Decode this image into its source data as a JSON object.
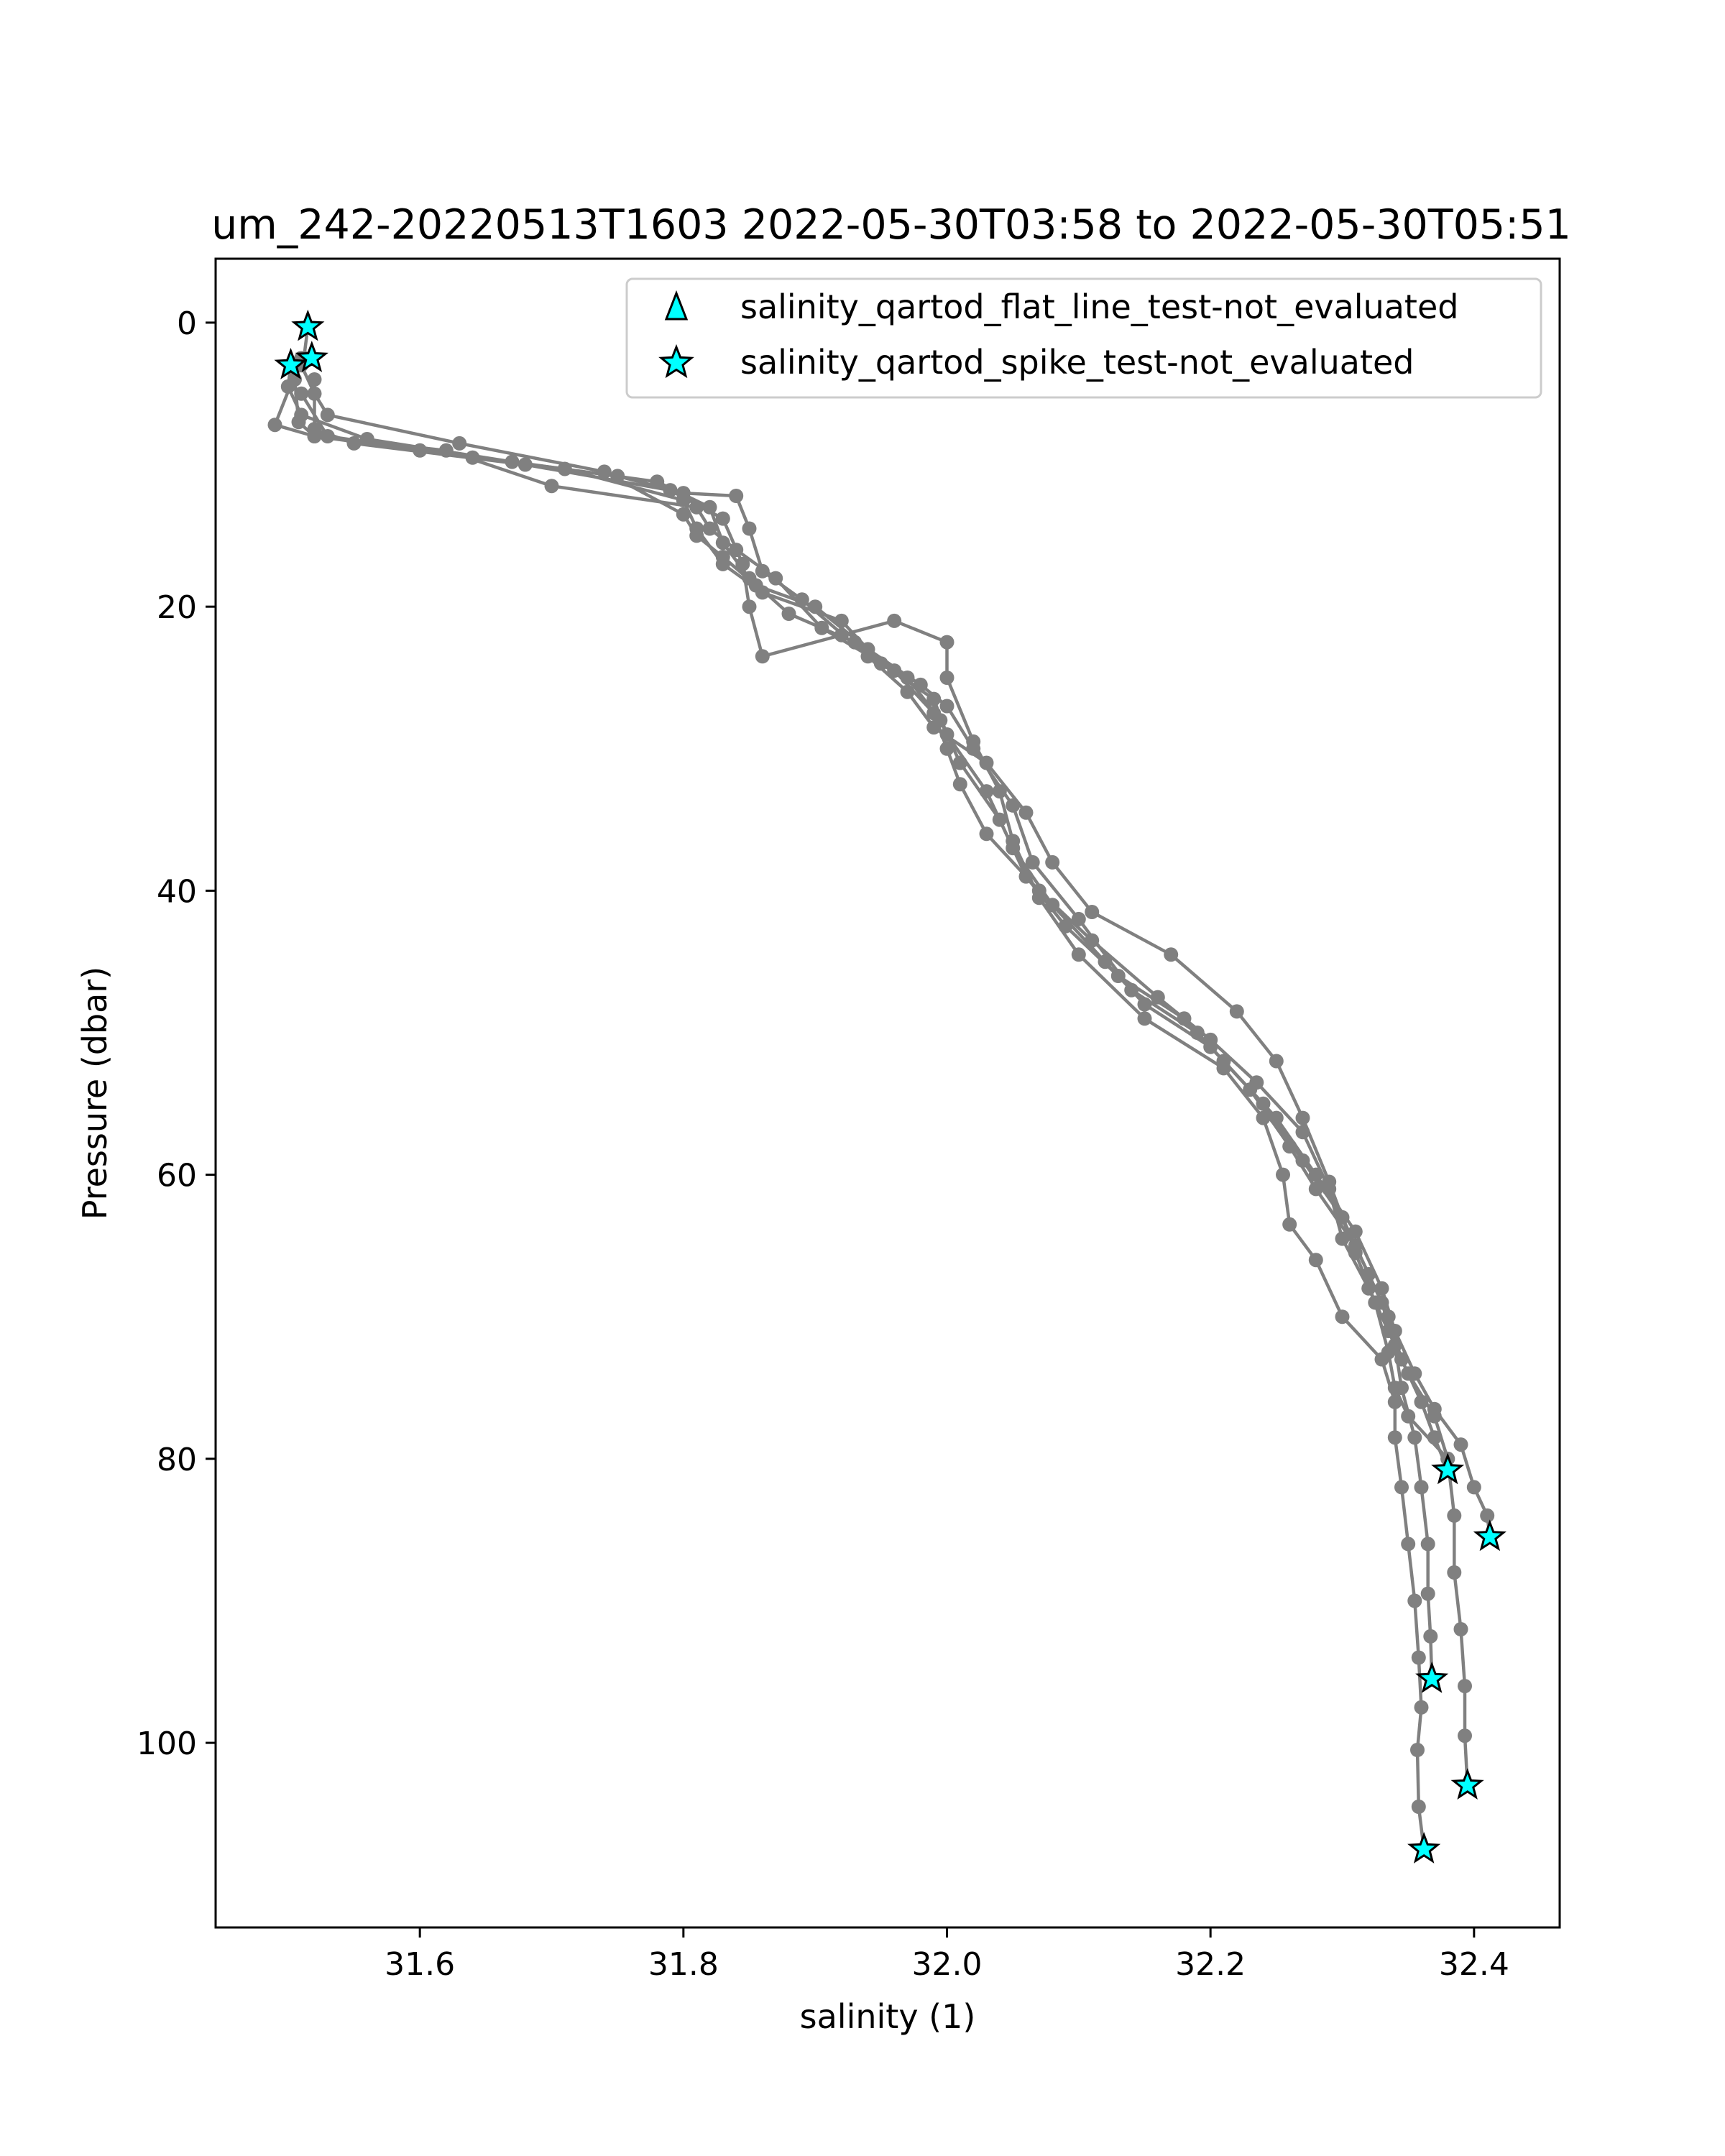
{
  "chart_data": {
    "type": "scatter",
    "title": "um_242-20220513T1603 2022-05-30T03:58 to 2022-05-30T05:51",
    "xlabel": "salinity (1)",
    "ylabel": "Pressure (dbar)",
    "xlim": [
      31.445,
      32.465
    ],
    "ylim": [
      113,
      -4.5
    ],
    "y_inverted": true,
    "xticks": [
      31.6,
      31.8,
      32.0,
      32.2,
      32.4
    ],
    "xtick_labels": [
      "31.6",
      "31.8",
      "32.0",
      "32.2",
      "32.4"
    ],
    "yticks": [
      0,
      20,
      40,
      60,
      80,
      100
    ],
    "ytick_labels": [
      "0",
      "20",
      "40",
      "60",
      "80",
      "100"
    ],
    "grid": false,
    "legend_position": "top-right",
    "profile_color": "#808080",
    "marker_color": "#00ffff",
    "series": [
      {
        "role": "profile",
        "points": [
          [
            31.515,
            0.3
          ],
          [
            31.512,
            2.5
          ],
          [
            31.505,
            4.0
          ],
          [
            31.508,
            7.0
          ],
          [
            31.52,
            8.0
          ],
          [
            31.6,
            9.0
          ],
          [
            31.71,
            10.3
          ],
          [
            31.8,
            12.5
          ],
          [
            31.81,
            14.5
          ],
          [
            31.83,
            17.0
          ],
          [
            31.86,
            19.0
          ],
          [
            31.92,
            21.0
          ],
          [
            31.95,
            24.0
          ],
          [
            31.99,
            26.5
          ],
          [
            32.0,
            29.0
          ],
          [
            32.03,
            33.0
          ],
          [
            32.05,
            37.0
          ],
          [
            32.08,
            41.0
          ],
          [
            32.12,
            45.0
          ],
          [
            32.15,
            48.0
          ],
          [
            32.2,
            51.0
          ],
          [
            32.24,
            55.0
          ],
          [
            32.27,
            59.0
          ],
          [
            32.3,
            63.0
          ],
          [
            32.32,
            67.0
          ],
          [
            32.335,
            70.0
          ],
          [
            32.345,
            73.0
          ],
          [
            32.36,
            76.0
          ],
          [
            32.37,
            78.5
          ],
          [
            32.38,
            80.8
          ]
        ]
      },
      {
        "role": "profile",
        "points": [
          [
            31.502,
            3.0
          ],
          [
            31.5,
            4.5
          ],
          [
            31.51,
            6.5
          ],
          [
            31.56,
            8.2
          ],
          [
            31.67,
            9.8
          ],
          [
            31.78,
            11.2
          ],
          [
            31.82,
            13.0
          ],
          [
            31.83,
            15.5
          ],
          [
            31.85,
            18.0
          ],
          [
            31.88,
            20.5
          ],
          [
            31.93,
            22.5
          ],
          [
            31.97,
            25.0
          ],
          [
            31.995,
            28.0
          ],
          [
            32.01,
            31.0
          ],
          [
            32.04,
            35.0
          ],
          [
            32.06,
            39.0
          ],
          [
            32.09,
            42.5
          ],
          [
            32.13,
            46.0
          ],
          [
            32.18,
            49.0
          ],
          [
            32.21,
            52.0
          ],
          [
            32.25,
            56.0
          ],
          [
            32.28,
            60.0
          ],
          [
            32.31,
            64.0
          ],
          [
            32.33,
            68.0
          ],
          [
            32.34,
            71.0
          ],
          [
            32.355,
            74.0
          ],
          [
            32.37,
            76.5
          ],
          [
            32.39,
            79.0
          ],
          [
            32.4,
            82.0
          ],
          [
            32.41,
            84.0
          ],
          [
            32.412,
            85.5
          ]
        ]
      },
      {
        "role": "profile",
        "points": [
          [
            31.51,
            3.0
          ],
          [
            31.52,
            5.0
          ],
          [
            31.53,
            6.5
          ],
          [
            31.63,
            8.5
          ],
          [
            31.74,
            10.5
          ],
          [
            31.8,
            13.5
          ],
          [
            31.81,
            15.0
          ],
          [
            31.83,
            16.5
          ],
          [
            31.855,
            18.5
          ],
          [
            31.9,
            20.0
          ],
          [
            31.94,
            23.0
          ],
          [
            31.98,
            25.5
          ],
          [
            32.0,
            27.0
          ],
          [
            32.02,
            30.0
          ],
          [
            32.05,
            34.0
          ],
          [
            32.065,
            38.0
          ],
          [
            32.1,
            42.0
          ],
          [
            32.14,
            47.0
          ],
          [
            32.19,
            50.0
          ],
          [
            32.23,
            54.0
          ],
          [
            32.26,
            58.0
          ],
          [
            32.28,
            61.0
          ],
          [
            32.31,
            65.0
          ],
          [
            32.33,
            69.0
          ],
          [
            32.34,
            72.0
          ],
          [
            32.345,
            75.0
          ],
          [
            32.355,
            78.5
          ],
          [
            32.36,
            82.0
          ],
          [
            32.365,
            86.0
          ],
          [
            32.365,
            89.5
          ],
          [
            32.367,
            92.5
          ],
          [
            32.368,
            95.5
          ]
        ]
      },
      {
        "role": "profile",
        "points": [
          [
            31.51,
            2.5
          ],
          [
            31.49,
            7.2
          ],
          [
            31.52,
            8.0
          ],
          [
            31.62,
            9.0
          ],
          [
            31.7,
            11.5
          ],
          [
            31.81,
            13.0
          ],
          [
            31.82,
            14.5
          ],
          [
            31.84,
            16.0
          ],
          [
            31.87,
            18.0
          ],
          [
            31.905,
            21.5
          ],
          [
            31.96,
            24.5
          ],
          [
            31.99,
            27.5
          ],
          [
            32.0,
            30.0
          ],
          [
            32.01,
            32.5
          ],
          [
            32.03,
            36.0
          ],
          [
            32.07,
            40.0
          ],
          [
            32.11,
            43.5
          ],
          [
            32.16,
            47.5
          ],
          [
            32.2,
            50.5
          ],
          [
            32.235,
            53.5
          ],
          [
            32.27,
            57.0
          ],
          [
            32.29,
            61.0
          ],
          [
            32.3,
            64.5
          ],
          [
            32.32,
            68.0
          ],
          [
            32.335,
            71.0
          ],
          [
            32.35,
            74.0
          ],
          [
            32.37,
            77.0
          ],
          [
            32.38,
            80.0
          ],
          [
            32.385,
            84.0
          ],
          [
            32.385,
            88.0
          ],
          [
            32.39,
            92.0
          ],
          [
            32.393,
            96.0
          ],
          [
            32.393,
            99.5
          ],
          [
            32.395,
            103.0
          ]
        ]
      },
      {
        "role": "profile",
        "points": [
          [
            31.52,
            4.0
          ],
          [
            31.52,
            7.5
          ],
          [
            31.55,
            8.5
          ],
          [
            31.68,
            10.0
          ],
          [
            31.79,
            11.8
          ],
          [
            31.83,
            13.8
          ],
          [
            31.845,
            17.0
          ],
          [
            31.85,
            20.0
          ],
          [
            31.86,
            23.5
          ],
          [
            31.92,
            22.0
          ],
          [
            31.96,
            21.0
          ],
          [
            32.0,
            22.5
          ],
          [
            32.0,
            25.0
          ],
          [
            32.02,
            29.5
          ],
          [
            32.04,
            33.0
          ],
          [
            32.05,
            36.5
          ],
          [
            32.07,
            40.5
          ],
          [
            32.1,
            44.5
          ],
          [
            32.15,
            49.0
          ],
          [
            32.21,
            52.5
          ],
          [
            32.24,
            56.0
          ],
          [
            32.255,
            60.0
          ],
          [
            32.26,
            63.5
          ],
          [
            32.28,
            66.0
          ],
          [
            32.3,
            70.0
          ],
          [
            32.33,
            73.0
          ],
          [
            32.34,
            76.0
          ],
          [
            32.34,
            78.5
          ],
          [
            32.345,
            82.0
          ],
          [
            32.35,
            86.0
          ],
          [
            32.355,
            90.0
          ],
          [
            32.358,
            94.0
          ],
          [
            32.36,
            97.5
          ],
          [
            32.357,
            100.5
          ],
          [
            32.358,
            104.5
          ],
          [
            32.362,
            107.5
          ]
        ]
      },
      {
        "role": "profile",
        "points": [
          [
            31.51,
            5.0
          ],
          [
            31.53,
            8.0
          ],
          [
            31.64,
            9.5
          ],
          [
            31.75,
            10.8
          ],
          [
            31.8,
            12.0
          ],
          [
            31.84,
            12.2
          ],
          [
            31.85,
            14.5
          ],
          [
            31.86,
            17.5
          ],
          [
            31.89,
            19.5
          ],
          [
            31.94,
            23.5
          ],
          [
            31.97,
            26.0
          ],
          [
            31.99,
            28.5
          ],
          [
            32.03,
            31.0
          ],
          [
            32.06,
            34.5
          ],
          [
            32.08,
            38.0
          ],
          [
            32.11,
            41.5
          ],
          [
            32.17,
            44.5
          ],
          [
            32.22,
            48.5
          ],
          [
            32.25,
            52.0
          ],
          [
            32.27,
            56.0
          ],
          [
            32.29,
            60.5
          ],
          [
            32.31,
            65.5
          ],
          [
            32.325,
            69.0
          ],
          [
            32.335,
            72.5
          ],
          [
            32.34,
            75.0
          ],
          [
            32.35,
            77.0
          ],
          [
            32.38,
            80.0
          ]
        ]
      }
    ],
    "flagged_points": [
      {
        "label": "salinity_qartod_spike_test-not_evaluated",
        "x": 31.515,
        "y": 0.3
      },
      {
        "label": "salinity_qartod_spike_test-not_evaluated",
        "x": 31.502,
        "y": 3.0
      },
      {
        "label": "salinity_qartod_spike_test-not_evaluated",
        "x": 31.518,
        "y": 2.5
      },
      {
        "label": "salinity_qartod_spike_test-not_evaluated",
        "x": 32.38,
        "y": 80.8
      },
      {
        "label": "salinity_qartod_spike_test-not_evaluated",
        "x": 32.412,
        "y": 85.5
      },
      {
        "label": "salinity_qartod_spike_test-not_evaluated",
        "x": 32.368,
        "y": 95.5
      },
      {
        "label": "salinity_qartod_spike_test-not_evaluated",
        "x": 32.395,
        "y": 103.0
      },
      {
        "label": "salinity_qartod_spike_test-not_evaluated",
        "x": 32.362,
        "y": 107.5
      }
    ],
    "legend": [
      {
        "marker": "triangle",
        "label": "salinity_qartod_flat_line_test-not_evaluated"
      },
      {
        "marker": "star",
        "label": "salinity_qartod_spike_test-not_evaluated"
      }
    ]
  }
}
